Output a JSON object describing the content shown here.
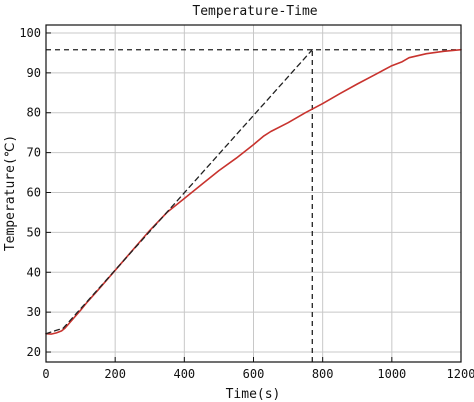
{
  "chart_data": {
    "type": "line",
    "title": "Temperature-Time",
    "xlabel": "Time(s)",
    "ylabel": "Temperature(℃)",
    "xlim": [
      0,
      1200
    ],
    "ylim": [
      17.5,
      102
    ],
    "xticks": [
      0,
      200,
      400,
      600,
      800,
      1000,
      1200
    ],
    "yticks": [
      20,
      30,
      40,
      50,
      60,
      70,
      80,
      90,
      100
    ],
    "grid": true,
    "series": [
      {
        "color": "#c8332e",
        "style": "solid",
        "x": [
          0,
          15,
          30,
          45,
          55,
          65,
          80,
          100,
          120,
          150,
          200,
          250,
          300,
          350,
          400,
          450,
          500,
          550,
          600,
          630,
          650,
          700,
          750,
          800,
          850,
          900,
          950,
          1000,
          1030,
          1050,
          1100,
          1150,
          1200
        ],
        "y": [
          24.6,
          24.5,
          24.8,
          25.3,
          26.0,
          27.0,
          28.5,
          30.5,
          32.6,
          35.5,
          40.5,
          45.5,
          50.5,
          55.0,
          58.5,
          62.0,
          65.5,
          68.6,
          72.0,
          74.2,
          75.3,
          77.5,
          80.0,
          82.3,
          84.8,
          87.2,
          89.5,
          91.8,
          92.8,
          93.8,
          94.8,
          95.4,
          95.8
        ]
      },
      {
        "color": "#222222",
        "style": "dashed",
        "x": [
          0,
          50,
          770
        ],
        "y": [
          24.6,
          26.0,
          95.8
        ]
      }
    ],
    "reference_lines": [
      {
        "orientation": "horizontal",
        "value": 95.8,
        "from": 0,
        "to": 1200,
        "style": "dashed"
      },
      {
        "orientation": "vertical",
        "value": 770,
        "from": 17.5,
        "to": 95.8,
        "style": "dashed"
      }
    ]
  }
}
